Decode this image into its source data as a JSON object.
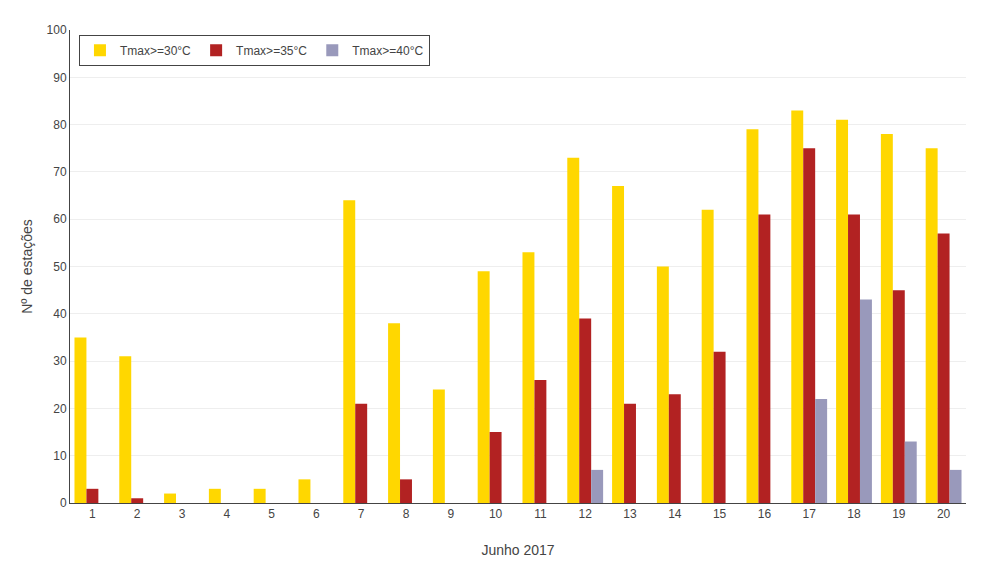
{
  "chart_data": {
    "type": "bar",
    "categories": [
      "1",
      "2",
      "3",
      "4",
      "5",
      "6",
      "7",
      "8",
      "9",
      "10",
      "11",
      "12",
      "13",
      "14",
      "15",
      "16",
      "17",
      "18",
      "19",
      "20"
    ],
    "series": [
      {
        "name": "Tmax>=30°C",
        "color": "#FFD700",
        "values": [
          35,
          31,
          2,
          3,
          3,
          5,
          64,
          38,
          24,
          49,
          53,
          73,
          67,
          50,
          62,
          79,
          83,
          81,
          78,
          75
        ]
      },
      {
        "name": "Tmax>=35°C",
        "color": "#B22222",
        "values": [
          3,
          1,
          0,
          0,
          0,
          0,
          21,
          5,
          0,
          15,
          26,
          39,
          21,
          23,
          32,
          61,
          75,
          61,
          45,
          57
        ]
      },
      {
        "name": "Tmax>=40°C",
        "color": "#9999BB",
        "values": [
          0,
          0,
          0,
          0,
          0,
          0,
          0,
          0,
          0,
          0,
          0,
          7,
          0,
          0,
          0,
          0,
          22,
          43,
          13,
          7
        ]
      }
    ],
    "xlabel": "Junho 2017",
    "ylabel": "Nº de estações",
    "ylim": [
      0,
      100
    ],
    "yticks": [
      0,
      10,
      20,
      30,
      40,
      50,
      60,
      70,
      80,
      90,
      100
    ],
    "grid": true,
    "legend": "upper left"
  }
}
